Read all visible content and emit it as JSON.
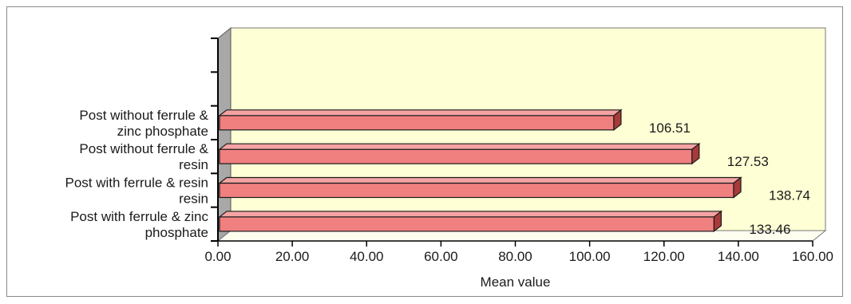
{
  "chart_data": {
    "type": "bar",
    "orientation": "horizontal",
    "three_d": true,
    "categories": [
      [
        "Post with ferrule & zinc",
        "phosphate"
      ],
      [
        "Post with ferrule & resin",
        "resin"
      ],
      [
        "Post without ferrule &",
        "resin"
      ],
      [
        "Post without ferrule &",
        "zinc phosphate"
      ]
    ],
    "values": [
      133.46,
      138.74,
      127.53,
      106.51
    ],
    "data_labels": [
      "133.46",
      "138.74",
      "127.53",
      "106.51"
    ],
    "xlabel": "Mean value",
    "ylabel": "",
    "xlim": [
      0,
      160
    ],
    "x_ticks": [
      0,
      20,
      40,
      60,
      80,
      100,
      120,
      140,
      160
    ],
    "x_tick_labels": [
      "0.00",
      "20.00",
      "40.00",
      "60.00",
      "80.00",
      "100.00",
      "120.00",
      "140.00",
      "160.00"
    ],
    "grid": false,
    "legend": "none",
    "colors": {
      "bar_front": "#f08080",
      "bar_top": "#f4a3a3",
      "bar_side": "#a83a3a",
      "plot_back_wall": "#ffffd5",
      "plot_left_wall": "#a8a8a8",
      "plot_floor": "#fffff0",
      "outline": "#1a1a1a"
    }
  }
}
